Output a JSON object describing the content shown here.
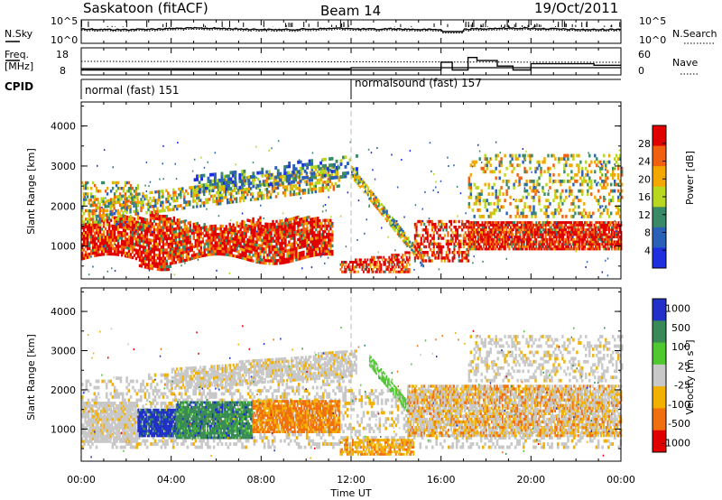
{
  "header": {
    "station": "Saskatoon (fitACF)",
    "beam": "Beam 14",
    "date": "19/Oct/2011"
  },
  "noise_panel": {
    "left_label": "N.Sky",
    "right_label": "N.Search",
    "left_ticks": [
      "10^5",
      "10^0"
    ],
    "right_ticks": [
      "10^5",
      "10^0"
    ]
  },
  "freq_panel": {
    "left_label_1": "Freq.",
    "left_label_2": "[MHz]",
    "right_label": "Nave",
    "left_ticks": [
      "18",
      "8"
    ],
    "right_ticks": [
      "60",
      "0"
    ],
    "nave_segments": [
      {
        "start_hour": 0.0,
        "end_hour": 16.0,
        "value": 8
      },
      {
        "start_hour": 16.0,
        "end_hour": 16.5,
        "value": 28
      },
      {
        "start_hour": 16.5,
        "end_hour": 17.2,
        "value": 8
      },
      {
        "start_hour": 17.2,
        "end_hour": 17.6,
        "value": 40
      },
      {
        "start_hour": 17.6,
        "end_hour": 18.5,
        "value": 32
      },
      {
        "start_hour": 18.5,
        "end_hour": 19.2,
        "value": 18
      },
      {
        "start_hour": 19.2,
        "end_hour": 20.0,
        "value": 8
      },
      {
        "start_hour": 20.0,
        "end_hour": 21.2,
        "value": 24
      },
      {
        "start_hour": 21.2,
        "end_hour": 22.8,
        "value": 24
      },
      {
        "start_hour": 22.8,
        "end_hour": 24.0,
        "value": 20
      }
    ]
  },
  "cpid": {
    "label": "CPID",
    "modes": [
      {
        "name": "normal (fast) 151",
        "start_hour": 0.0
      },
      {
        "name": "normalsound (fast) 157",
        "start_hour": 12.0
      }
    ]
  },
  "x_axis": {
    "label": "Time UT",
    "ticks": [
      "00:00",
      "04:00",
      "08:00",
      "12:00",
      "16:00",
      "20:00",
      "00:00"
    ],
    "tick_hours": [
      0,
      4,
      8,
      12,
      16,
      20,
      24
    ],
    "range_hours": [
      0,
      24
    ]
  },
  "chart_data": [
    {
      "type": "heatmap",
      "name": "power",
      "ylabel": "Slant Range [km]",
      "yticks": [
        "1000",
        "2000",
        "3000",
        "4000"
      ],
      "ytick_values": [
        1000,
        2000,
        3000,
        4000
      ],
      "ylim": [
        180,
        4600
      ],
      "colorbar_label": "Power [dB]",
      "colorbar_ticks": [
        "4",
        "8",
        "12",
        "16",
        "20",
        "24",
        "28"
      ],
      "colorbar_values": [
        4,
        8,
        12,
        16,
        20,
        24,
        28
      ],
      "colorbar_colors": [
        "#1f2fe0",
        "#2a60b8",
        "#3a8a68",
        "#b8d820",
        "#f2a800",
        "#f06010",
        "#e00000"
      ],
      "colorbar_range": [
        0,
        32
      ]
    },
    {
      "type": "heatmap",
      "name": "velocity",
      "ylabel": "Slant Range [km]",
      "yticks": [
        "1000",
        "2000",
        "3000",
        "4000"
      ],
      "ytick_values": [
        1000,
        2000,
        3000,
        4000
      ],
      "ylim": [
        180,
        4600
      ],
      "colorbar_label": "Velocity [m s^-1]",
      "colorbar_ticks": [
        "1000",
        "500",
        "100",
        "25",
        "-25",
        "-100",
        "-500",
        "-1000"
      ],
      "colorbar_colors": [
        "#2030c8",
        "#3a8a58",
        "#50c830",
        "#c8c8c8",
        "#f2b000",
        "#f07010",
        "#e00000"
      ]
    }
  ]
}
